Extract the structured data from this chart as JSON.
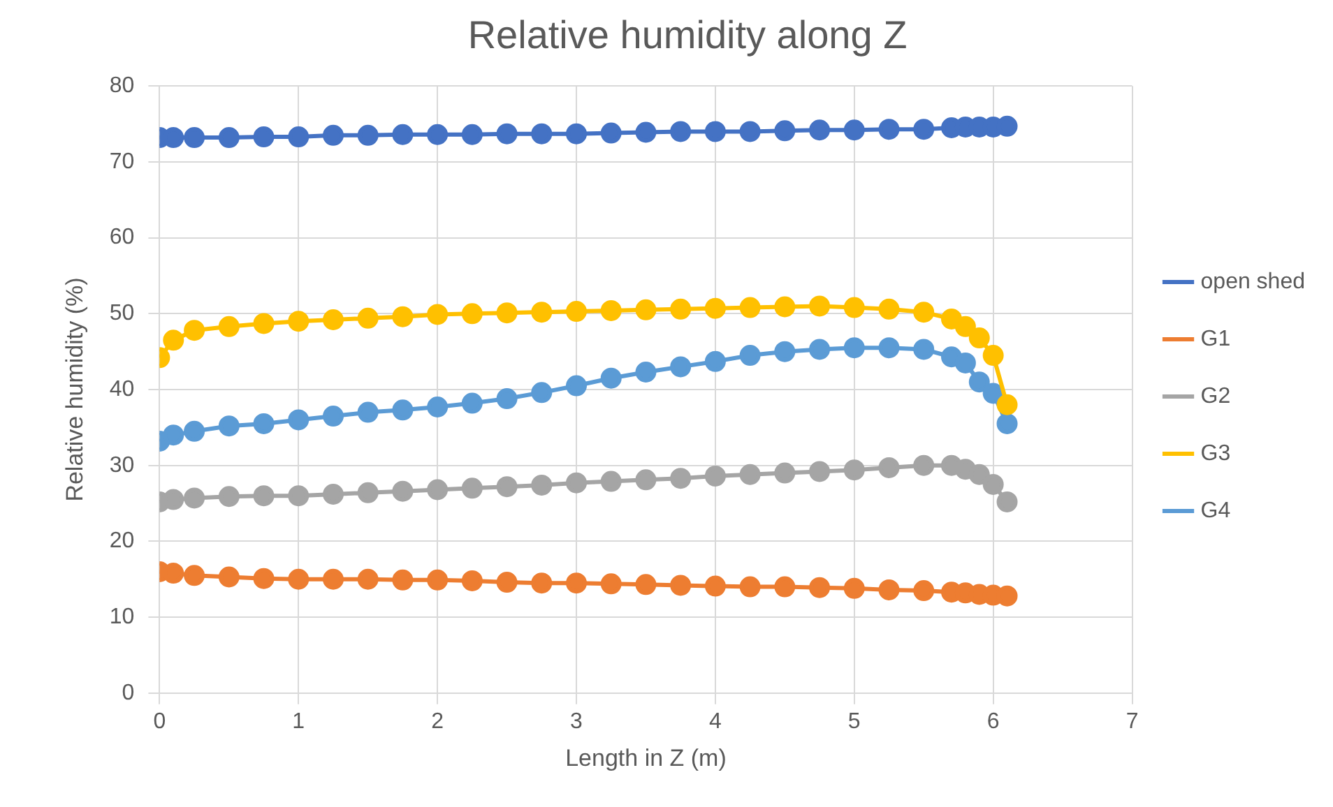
{
  "chart_data": {
    "type": "line",
    "title": "Relative humidity along Z",
    "xlabel": "Length in Z (m)",
    "ylabel": "Relative humidity (%)",
    "x": [
      0,
      0.1,
      0.25,
      0.5,
      0.75,
      1,
      1.25,
      1.5,
      1.75,
      2,
      2.25,
      2.5,
      2.75,
      3,
      3.25,
      3.5,
      3.75,
      4,
      4.25,
      4.5,
      4.75,
      5,
      5.25,
      5.5,
      5.7,
      5.8,
      5.9,
      6,
      6.1
    ],
    "series": [
      {
        "name": "open shed",
        "color": "#4472c4",
        "values": [
          73.2,
          73.2,
          73.2,
          73.2,
          73.3,
          73.3,
          73.5,
          73.5,
          73.6,
          73.6,
          73.6,
          73.7,
          73.7,
          73.7,
          73.8,
          73.9,
          74,
          74,
          74,
          74.1,
          74.2,
          74.2,
          74.3,
          74.3,
          74.5,
          74.6,
          74.6,
          74.6,
          74.7
        ]
      },
      {
        "name": "G1",
        "color": "#ed7d31",
        "values": [
          16,
          15.8,
          15.5,
          15.3,
          15.1,
          15,
          15,
          15,
          14.9,
          14.9,
          14.8,
          14.6,
          14.5,
          14.5,
          14.4,
          14.3,
          14.2,
          14.1,
          14,
          14,
          13.9,
          13.8,
          13.6,
          13.5,
          13.3,
          13.2,
          13,
          12.9,
          12.8
        ]
      },
      {
        "name": "G2",
        "color": "#a5a5a5",
        "values": [
          25.2,
          25.5,
          25.7,
          25.9,
          26,
          26,
          26.2,
          26.4,
          26.6,
          26.8,
          27,
          27.2,
          27.4,
          27.7,
          27.9,
          28.1,
          28.3,
          28.6,
          28.8,
          29,
          29.2,
          29.4,
          29.7,
          30,
          30,
          29.5,
          28.8,
          27.5,
          25.2
        ]
      },
      {
        "name": "G3",
        "color": "#ffc000",
        "values": [
          44.2,
          46.5,
          47.8,
          48.3,
          48.7,
          49,
          49.2,
          49.4,
          49.6,
          49.9,
          50,
          50.1,
          50.2,
          50.3,
          50.4,
          50.5,
          50.6,
          50.7,
          50.8,
          50.9,
          51,
          50.8,
          50.6,
          50.2,
          49.3,
          48.3,
          46.8,
          44.5,
          38
        ]
      },
      {
        "name": "G4",
        "color": "#5b9bd5",
        "values": [
          33.2,
          34,
          34.5,
          35.2,
          35.5,
          36,
          36.5,
          37,
          37.3,
          37.7,
          38.2,
          38.8,
          39.6,
          40.5,
          41.5,
          42.3,
          43,
          43.7,
          44.5,
          45,
          45.3,
          45.5,
          45.5,
          45.3,
          44.3,
          43.5,
          41,
          39.5,
          35.5
        ]
      }
    ],
    "xlim": [
      0,
      7
    ],
    "xticks": [
      0,
      1,
      2,
      3,
      4,
      5,
      6,
      7
    ],
    "ylim": [
      0,
      80
    ],
    "yticks": [
      0,
      10,
      20,
      30,
      40,
      50,
      60,
      70,
      80
    ],
    "grid": true,
    "legend": "right",
    "marker": "circle",
    "line_style": "solid"
  }
}
